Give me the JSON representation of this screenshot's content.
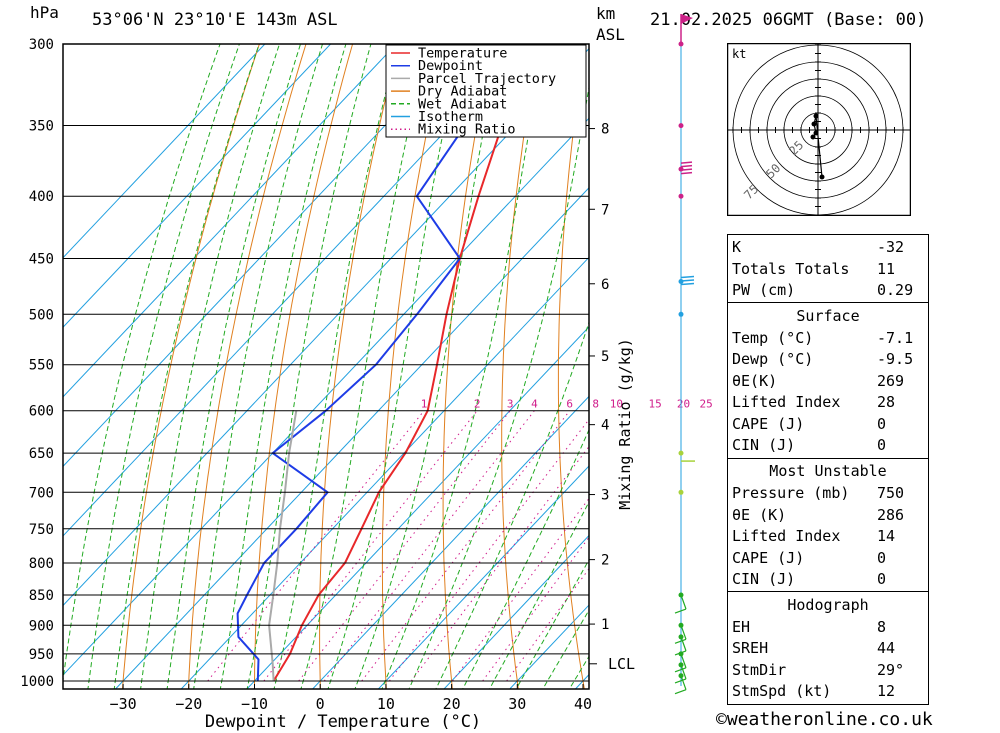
{
  "header": {
    "hpa_unit": "hPa",
    "location": "53°06'N 23°10'E 143m ASL",
    "km_unit": "km",
    "asl_unit": "ASL",
    "datetime": "21.02.2025 06GMT (Base: 00)"
  },
  "chart_data": {
    "type": "skew-t log-p",
    "title": "53°06'N 23°10'E 143m ASL",
    "xlabel": "Dewpoint / Temperature (°C)",
    "ylabel": "hPa",
    "mixing_ratio_axis_label": "Mixing Ratio (g/kg)",
    "xlim": [
      -40,
      40
    ],
    "ylim_hpa": [
      1000,
      300
    ],
    "x_ticks": [
      -30,
      -20,
      -10,
      0,
      10,
      20,
      30,
      40
    ],
    "x_tick_labels": [
      "−30",
      "−20",
      "−10",
      "0",
      "10",
      "20",
      "30",
      "40"
    ],
    "pressure_levels": [
      300,
      350,
      400,
      450,
      500,
      550,
      600,
      650,
      700,
      750,
      800,
      850,
      900,
      950,
      1000
    ],
    "km_levels": [
      {
        "km": "8",
        "p": 352
      },
      {
        "km": "7",
        "p": 410
      },
      {
        "km": "6",
        "p": 472
      },
      {
        "km": "5",
        "p": 541
      },
      {
        "km": "4",
        "p": 616
      },
      {
        "km": "3",
        "p": 703
      },
      {
        "km": "2",
        "p": 795
      },
      {
        "km": "1",
        "p": 898
      }
    ],
    "lcl": {
      "label": "LCL",
      "p": 968
    },
    "mixing_ratio_labels": [
      "1",
      "2",
      "3",
      "4",
      "6",
      "8",
      "10",
      "15",
      "20",
      "25"
    ],
    "mixing_ratio_values": [
      1,
      2,
      3,
      4,
      6,
      8,
      10,
      15,
      20,
      25
    ],
    "legend": {
      "position": "top-center",
      "entries": [
        {
          "name": "Temperature",
          "color": "#e8282a",
          "style": "solid"
        },
        {
          "name": "Dewpoint",
          "color": "#1e3ce6",
          "style": "solid"
        },
        {
          "name": "Parcel Trajectory",
          "color": "#aaaaaa",
          "style": "solid"
        },
        {
          "name": "Dry Adiabat",
          "color": "#e08020",
          "style": "solid"
        },
        {
          "name": "Wet Adiabat",
          "color": "#22aa22",
          "style": "dashed"
        },
        {
          "name": "Isotherm",
          "color": "#22a0e0",
          "style": "solid"
        },
        {
          "name": "Mixing Ratio",
          "color": "#d01c8b",
          "style": "dotted"
        }
      ]
    },
    "series": [
      {
        "name": "Temperature",
        "points": [
          [
            1000,
            -7.1
          ],
          [
            950,
            -8.5
          ],
          [
            900,
            -10.8
          ],
          [
            850,
            -12.6
          ],
          [
            800,
            -13.2
          ],
          [
            750,
            -15.6
          ],
          [
            700,
            -18.2
          ],
          [
            650,
            -19.8
          ],
          [
            600,
            -22.5
          ],
          [
            550,
            -27.7
          ],
          [
            500,
            -33.5
          ],
          [
            450,
            -39.5
          ],
          [
            400,
            -45.6
          ],
          [
            350,
            -52.2
          ],
          [
            300,
            -59.5
          ]
        ]
      },
      {
        "name": "Dewpoint",
        "points": [
          [
            1000,
            -9.5
          ],
          [
            960,
            -12.5
          ],
          [
            920,
            -18.8
          ],
          [
            880,
            -22.3
          ],
          [
            850,
            -23.5
          ],
          [
            800,
            -25.5
          ],
          [
            750,
            -25.5
          ],
          [
            700,
            -26.0
          ],
          [
            650,
            -40.0
          ],
          [
            600,
            -38.0
          ],
          [
            550,
            -37.0
          ],
          [
            500,
            -38.0
          ],
          [
            450,
            -39.5
          ],
          [
            400,
            -55.0
          ],
          [
            350,
            -57.8
          ],
          [
            300,
            -64.0
          ]
        ]
      },
      {
        "name": "Parcel Trajectory",
        "points": [
          [
            1000,
            -7.1
          ],
          [
            968,
            -9.7
          ],
          [
            900,
            -15.8
          ],
          [
            850,
            -19.5
          ],
          [
            800,
            -23.5
          ],
          [
            750,
            -28.0
          ],
          [
            700,
            -32.5
          ],
          [
            650,
            -37.5
          ],
          [
            600,
            -42.5
          ]
        ]
      }
    ],
    "wind_barbs_p": [
      300,
      350,
      380,
      400,
      470,
      500,
      650,
      700,
      850,
      900,
      920,
      950,
      970,
      990
    ]
  },
  "hodograph": {
    "unit": "kt",
    "ring_labels": [
      "25",
      "50",
      "75"
    ]
  },
  "indices": [
    {
      "label": "K",
      "value": "-32"
    },
    {
      "label": "Totals Totals",
      "value": "11"
    },
    {
      "label": "PW (cm)",
      "value": "0.29"
    }
  ],
  "surface": {
    "title": "Surface",
    "rows": [
      {
        "label": "Temp (°C)",
        "value": "-7.1"
      },
      {
        "label": "Dewp (°C)",
        "value": "-9.5"
      },
      {
        "label": "θE(K)",
        "value": "269"
      },
      {
        "label": "Lifted Index",
        "value": "28"
      },
      {
        "label": "CAPE (J)",
        "value": "0"
      },
      {
        "label": "CIN (J)",
        "value": "0"
      }
    ]
  },
  "most_unstable": {
    "title": "Most Unstable",
    "rows": [
      {
        "label": "Pressure (mb)",
        "value": "750"
      },
      {
        "label": "θE (K)",
        "value": "286"
      },
      {
        "label": "Lifted Index",
        "value": "14"
      },
      {
        "label": "CAPE (J)",
        "value": "0"
      },
      {
        "label": "CIN (J)",
        "value": "0"
      }
    ]
  },
  "hodograph_stats": {
    "title": "Hodograph",
    "rows": [
      {
        "label": "EH",
        "value": "8"
      },
      {
        "label": "SREH",
        "value": "44"
      },
      {
        "label": "StmDir",
        "value": "29°"
      },
      {
        "label": "StmSpd (kt)",
        "value": "12"
      }
    ]
  },
  "footer": {
    "credit": "©weatheronline.co.uk"
  },
  "colors": {
    "temperature": "#e8282a",
    "dewpoint": "#1e3ce6",
    "parcel": "#aaaaaa",
    "dry_adiabat": "#e08020",
    "wet_adiabat": "#22aa22",
    "isotherm": "#22a0e0",
    "mixing_ratio": "#d01c8b",
    "wind_upper": "#cc2288",
    "wind_mid": "#22a0e0",
    "wind_low": "#22aa22"
  }
}
